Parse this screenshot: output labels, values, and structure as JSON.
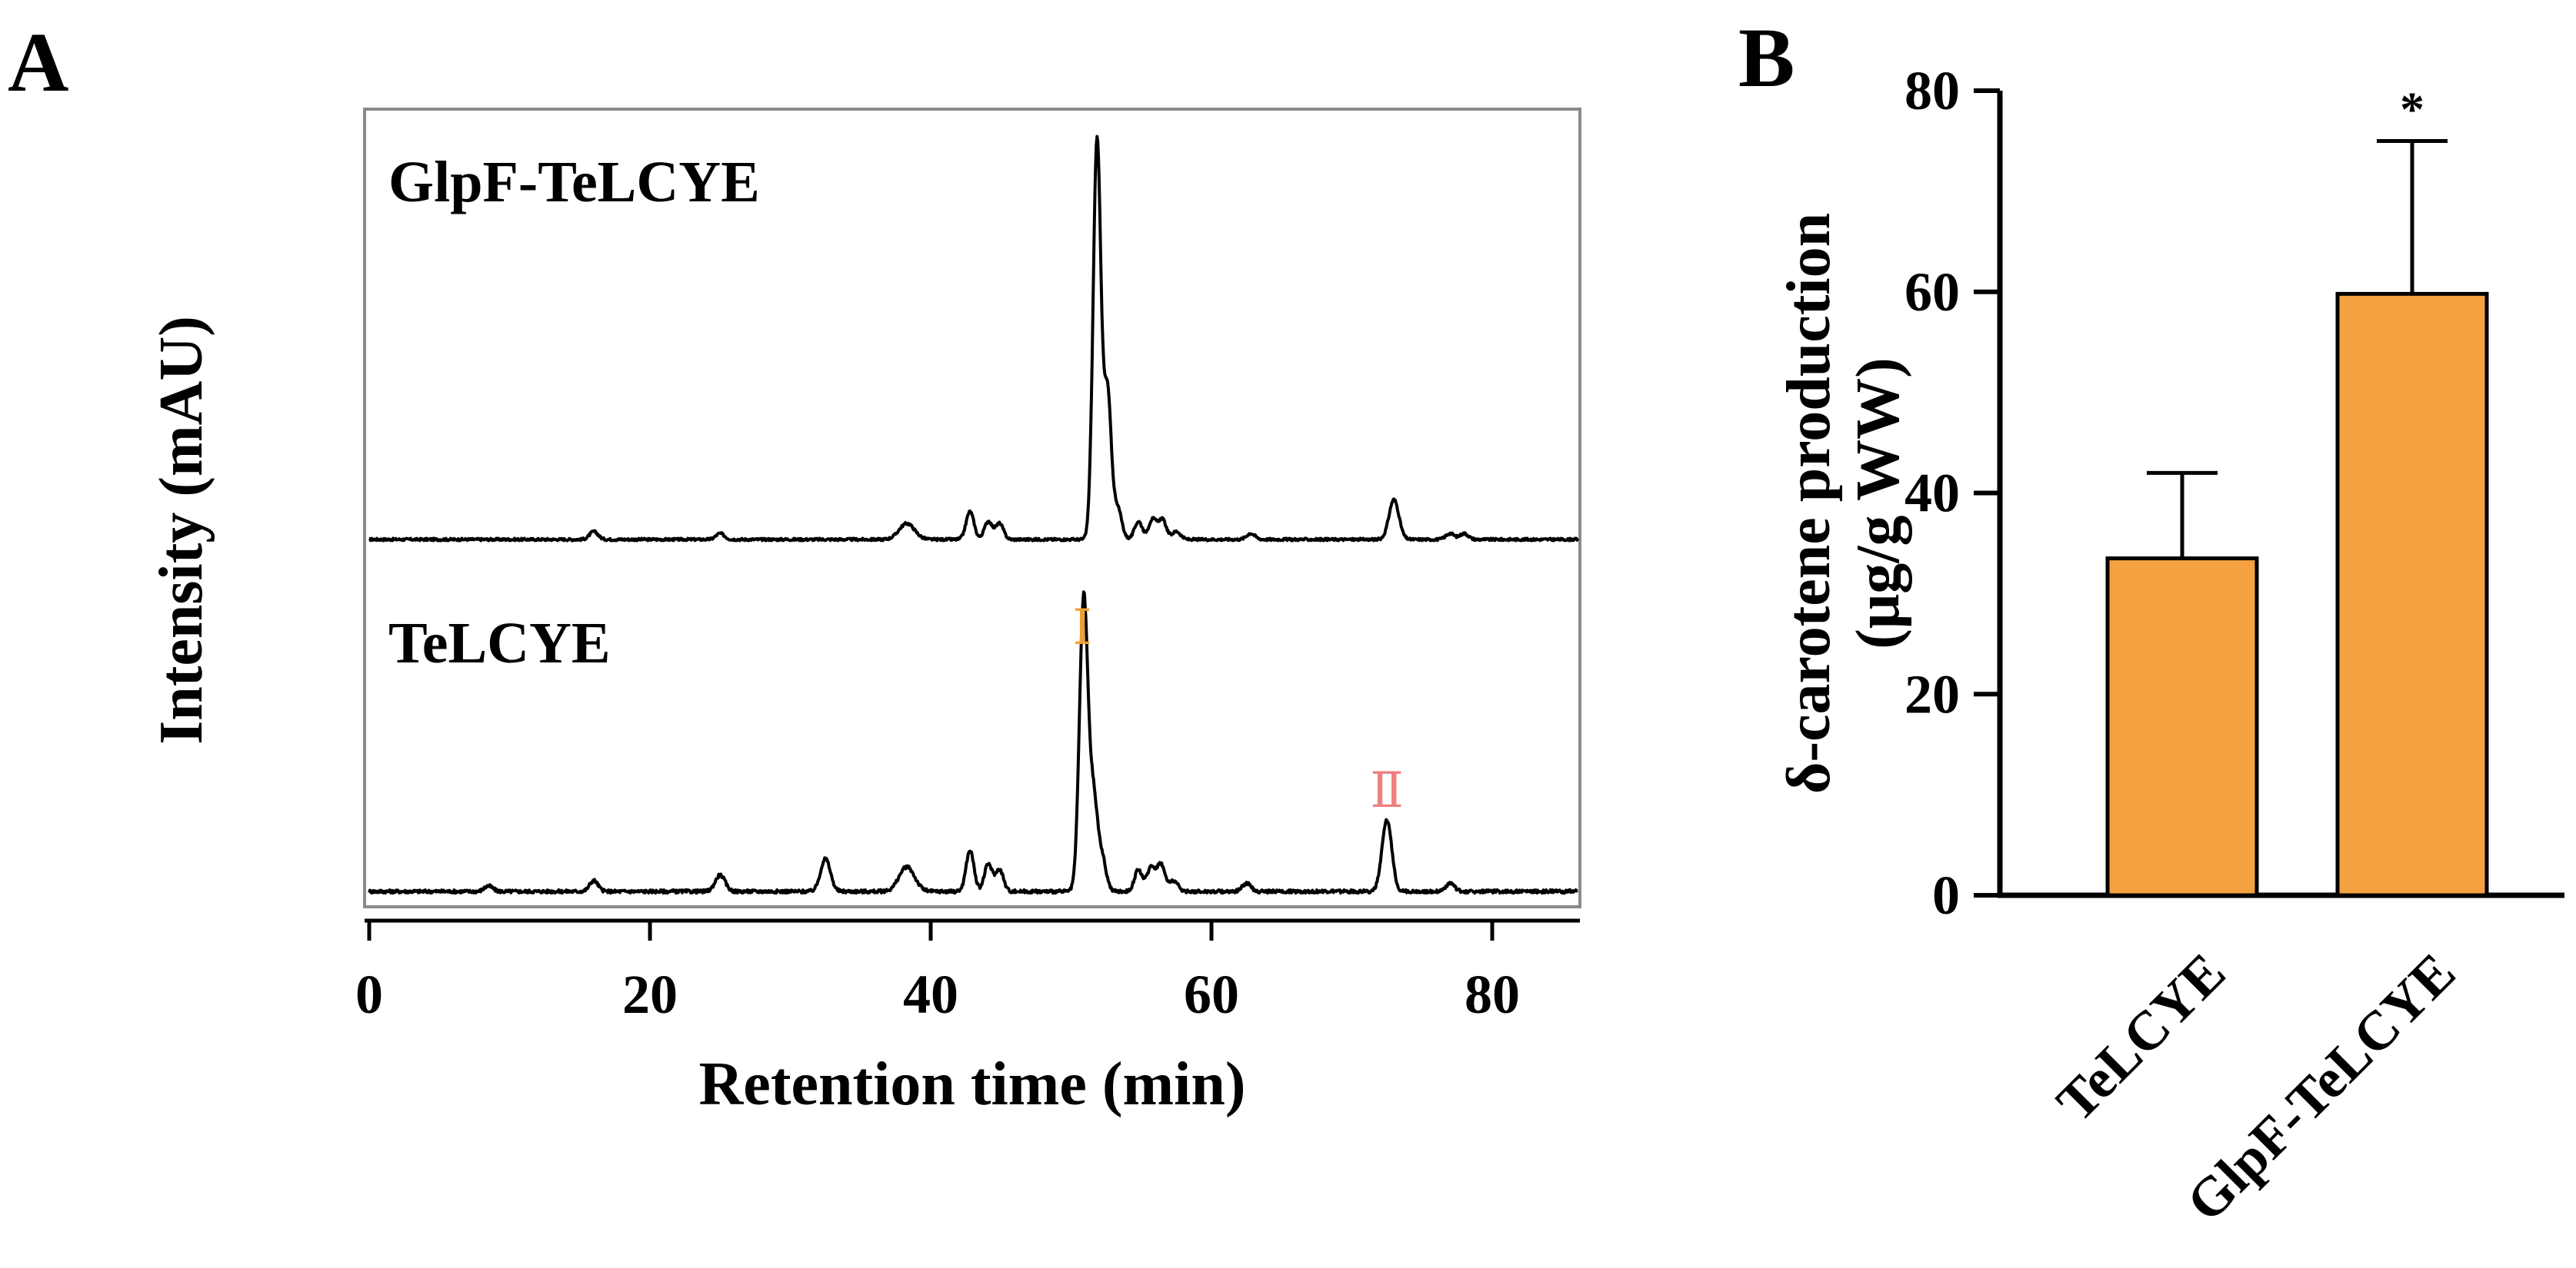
{
  "panels": {
    "a": {
      "label": "A"
    },
    "b": {
      "label": "B"
    }
  },
  "colors": {
    "trace": "#000000",
    "bar_fill": "#F4A142",
    "bar_edge": "#000000",
    "peak_I": "#F0A030",
    "peak_II": "#F08080"
  },
  "chart_data": [
    {
      "type": "line",
      "panel": "A",
      "title": "",
      "xlabel": "Retention time (min)",
      "ylabel": "Intensity (mAU)",
      "xlim": [
        0,
        87
      ],
      "xticks": [
        0,
        20,
        40,
        60,
        80
      ],
      "grid": false,
      "peak_labels": [
        {
          "text": "Ⅰ",
          "x": 50.8,
          "series": "TeLCYE",
          "color": "#F0A030"
        },
        {
          "text": "Ⅱ",
          "x": 72.5,
          "series": "TeLCYE",
          "color": "#F08080"
        }
      ],
      "series": [
        {
          "name": "GlpF-TeLCYE",
          "peaks": [
            {
              "x": 16.0,
              "h": 0.02,
              "w": 0.3
            },
            {
              "x": 25.0,
              "h": 0.015,
              "w": 0.3
            },
            {
              "x": 38.3,
              "h": 0.04,
              "w": 0.55
            },
            {
              "x": 42.8,
              "h": 0.07,
              "w": 0.28
            },
            {
              "x": 44.1,
              "h": 0.045,
              "w": 0.28
            },
            {
              "x": 44.9,
              "h": 0.04,
              "w": 0.28
            },
            {
              "x": 51.85,
              "h": 1.0,
              "w": 0.28
            },
            {
              "x": 52.6,
              "h": 0.36,
              "w": 0.26
            },
            {
              "x": 53.3,
              "h": 0.08,
              "w": 0.3
            },
            {
              "x": 54.8,
              "h": 0.045,
              "w": 0.28
            },
            {
              "x": 55.8,
              "h": 0.05,
              "w": 0.28
            },
            {
              "x": 56.5,
              "h": 0.05,
              "w": 0.28
            },
            {
              "x": 57.5,
              "h": 0.02,
              "w": 0.3
            },
            {
              "x": 62.8,
              "h": 0.015,
              "w": 0.3
            },
            {
              "x": 73.0,
              "h": 0.1,
              "w": 0.35
            },
            {
              "x": 77.0,
              "h": 0.015,
              "w": 0.3
            },
            {
              "x": 78.0,
              "h": 0.015,
              "w": 0.3
            }
          ]
        },
        {
          "name": "TeLCYE",
          "peaks": [
            {
              "x": 8.5,
              "h": 0.01,
              "w": 0.3
            },
            {
              "x": 16.0,
              "h": 0.02,
              "w": 0.3
            },
            {
              "x": 25.0,
              "h": 0.03,
              "w": 0.35
            },
            {
              "x": 32.5,
              "h": 0.06,
              "w": 0.35
            },
            {
              "x": 38.3,
              "h": 0.045,
              "w": 0.55
            },
            {
              "x": 42.8,
              "h": 0.075,
              "w": 0.28
            },
            {
              "x": 44.1,
              "h": 0.05,
              "w": 0.28
            },
            {
              "x": 44.9,
              "h": 0.04,
              "w": 0.28
            },
            {
              "x": 50.9,
              "h": 0.54,
              "w": 0.3
            },
            {
              "x": 51.6,
              "h": 0.16,
              "w": 0.28
            },
            {
              "x": 52.2,
              "h": 0.06,
              "w": 0.3
            },
            {
              "x": 54.8,
              "h": 0.04,
              "w": 0.28
            },
            {
              "x": 55.7,
              "h": 0.045,
              "w": 0.28
            },
            {
              "x": 56.4,
              "h": 0.05,
              "w": 0.28
            },
            {
              "x": 57.3,
              "h": 0.02,
              "w": 0.3
            },
            {
              "x": 62.5,
              "h": 0.015,
              "w": 0.3
            },
            {
              "x": 72.5,
              "h": 0.13,
              "w": 0.35
            },
            {
              "x": 77.0,
              "h": 0.015,
              "w": 0.3
            }
          ]
        }
      ]
    },
    {
      "type": "bar",
      "panel": "B",
      "title": "",
      "xlabel": "",
      "ylabel": "δ-carotene production",
      "ylabel_unit": "(μg/g WW)",
      "ylim": [
        0,
        80
      ],
      "yticks": [
        0,
        20,
        40,
        60,
        80
      ],
      "grid": false,
      "categories": [
        "TeLCYE",
        "GlpF-TeLCYE"
      ],
      "values": [
        33.5,
        59.8
      ],
      "errors": [
        8.5,
        15.2
      ],
      "annotations": [
        "",
        "*"
      ]
    }
  ]
}
